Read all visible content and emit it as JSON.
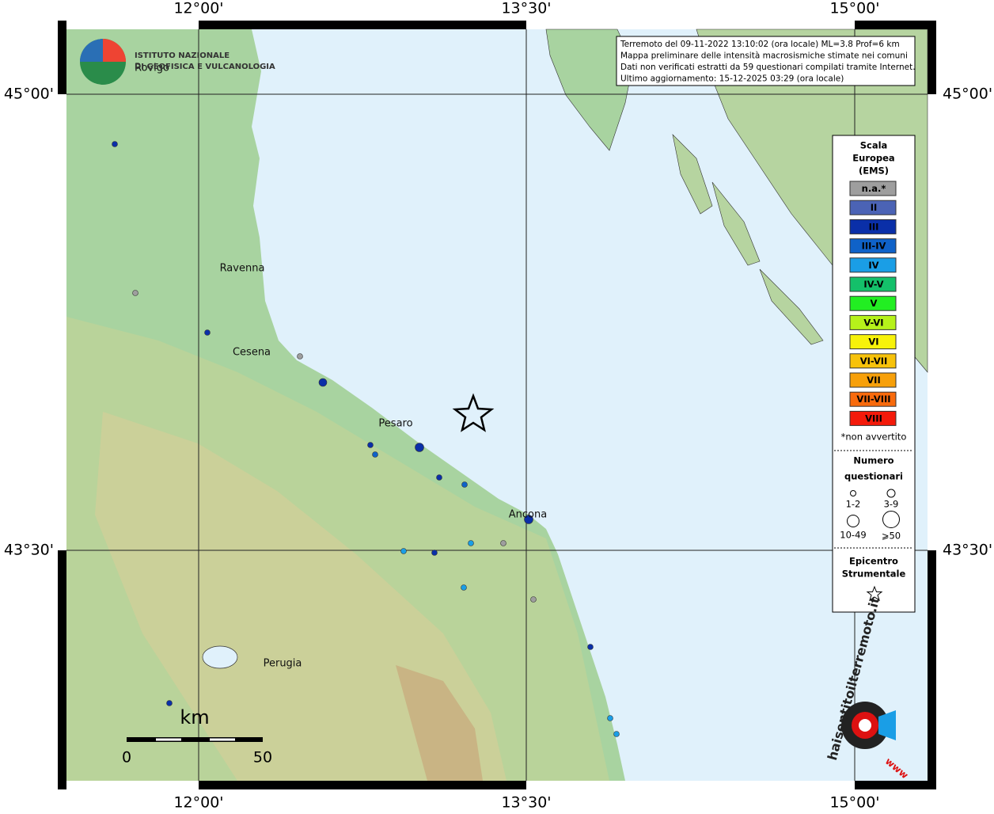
{
  "coord_labels": {
    "top": [
      "12°00'",
      "13°30'",
      "15°00'"
    ],
    "bottom": [
      "12°00'",
      "13°30'",
      "15°00'"
    ],
    "left": [
      "45°00'",
      "43°30'"
    ],
    "right": [
      "45°00'",
      "43°30'"
    ]
  },
  "logo": {
    "line1": "ISTITUTO NAZIONALE",
    "line2": "DI GEOFISICA E VULCANOLOGIA"
  },
  "info": [
    "Terremoto del 09-11-2022 13:10:02 (ora locale) ML=3.8 Prof=6 km",
    "Mappa preliminare delle intensità macrosismiche stimate nei comuni",
    "Dati non verificati estratti da 59 questionari compilati tramite Internet.",
    "Ultimo aggiornamento: 15-12-2025 03:29 (ora locale)"
  ],
  "cities": [
    "Rovigo",
    "Ravenna",
    "Cesena",
    "Pesaro",
    "Ancona",
    "Perugia"
  ],
  "legend": {
    "title": [
      "Scala",
      "Europea",
      "(EMS)"
    ],
    "items": [
      {
        "label": "n.a.*",
        "color": "#9e9e9e"
      },
      {
        "label": "II",
        "color": "#4b63b5"
      },
      {
        "label": "III",
        "color": "#0a2fa8"
      },
      {
        "label": "III-IV",
        "color": "#0f62c8"
      },
      {
        "label": "IV",
        "color": "#1a9ee6"
      },
      {
        "label": "IV-V",
        "color": "#14c06a"
      },
      {
        "label": "V",
        "color": "#22ee22"
      },
      {
        "label": "V-VI",
        "color": "#b6f21a"
      },
      {
        "label": "VI",
        "color": "#f7f20a"
      },
      {
        "label": "VI-VII",
        "color": "#f7c20a"
      },
      {
        "label": "VII",
        "color": "#f7a00a"
      },
      {
        "label": "VII-VIII",
        "color": "#f86a0c"
      },
      {
        "label": "VIII",
        "color": "#f41a0a"
      }
    ],
    "note": "*non avvertito",
    "count_title": [
      "Numero",
      "questionari"
    ],
    "counts": [
      "1-2",
      "3-9",
      "10-49",
      "⩾50"
    ],
    "epicenter": [
      "Epicentro",
      "Strumentale"
    ]
  },
  "scale": {
    "unit": "km",
    "start": "0",
    "end": "50"
  },
  "site": {
    "name": "haisentitoilterremoto.it",
    "www": "www"
  }
}
